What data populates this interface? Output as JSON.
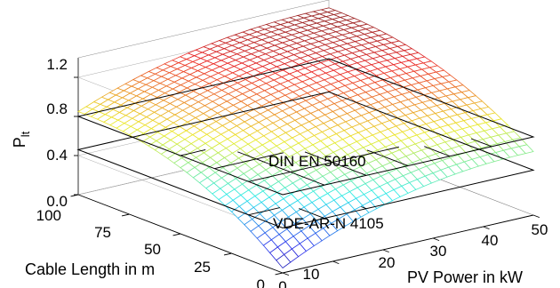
{
  "chart_data": {
    "type": "surface",
    "title": "",
    "xlabel": "PV Power in kW",
    "ylabel": "Cable Length in m",
    "zlabel": "P",
    "zlabel_sub": "lt",
    "x_ticks": [
      "0",
      "10",
      "20",
      "30",
      "40",
      "50"
    ],
    "y_ticks": [
      "0",
      "25",
      "50",
      "75",
      "100"
    ],
    "z_ticks": [
      "0.0",
      "0.4",
      "0.8",
      "1.2"
    ],
    "xlim": [
      0,
      50
    ],
    "ylim": [
      0,
      100
    ],
    "zlim": [
      0,
      1.4
    ],
    "grid": true,
    "colormap": "jet",
    "colors": {
      "low": "#3232ff",
      "mid": "#31e6e6",
      "yellow": "#e6e632",
      "high": "#e63232"
    },
    "planes": [
      {
        "label": "DIN EN 50160",
        "z": 0.8
      },
      {
        "label": "VDE-AR-N 4105",
        "z": 0.46
      }
    ],
    "surface_corners": [
      {
        "pv_power": 0,
        "cable_length": 0,
        "plt": 0.05
      },
      {
        "pv_power": 50,
        "cable_length": 0,
        "plt": 0.65
      },
      {
        "pv_power": 0,
        "cable_length": 100,
        "plt": 0.85
      },
      {
        "pv_power": 50,
        "cable_length": 100,
        "plt": 1.32
      }
    ]
  }
}
